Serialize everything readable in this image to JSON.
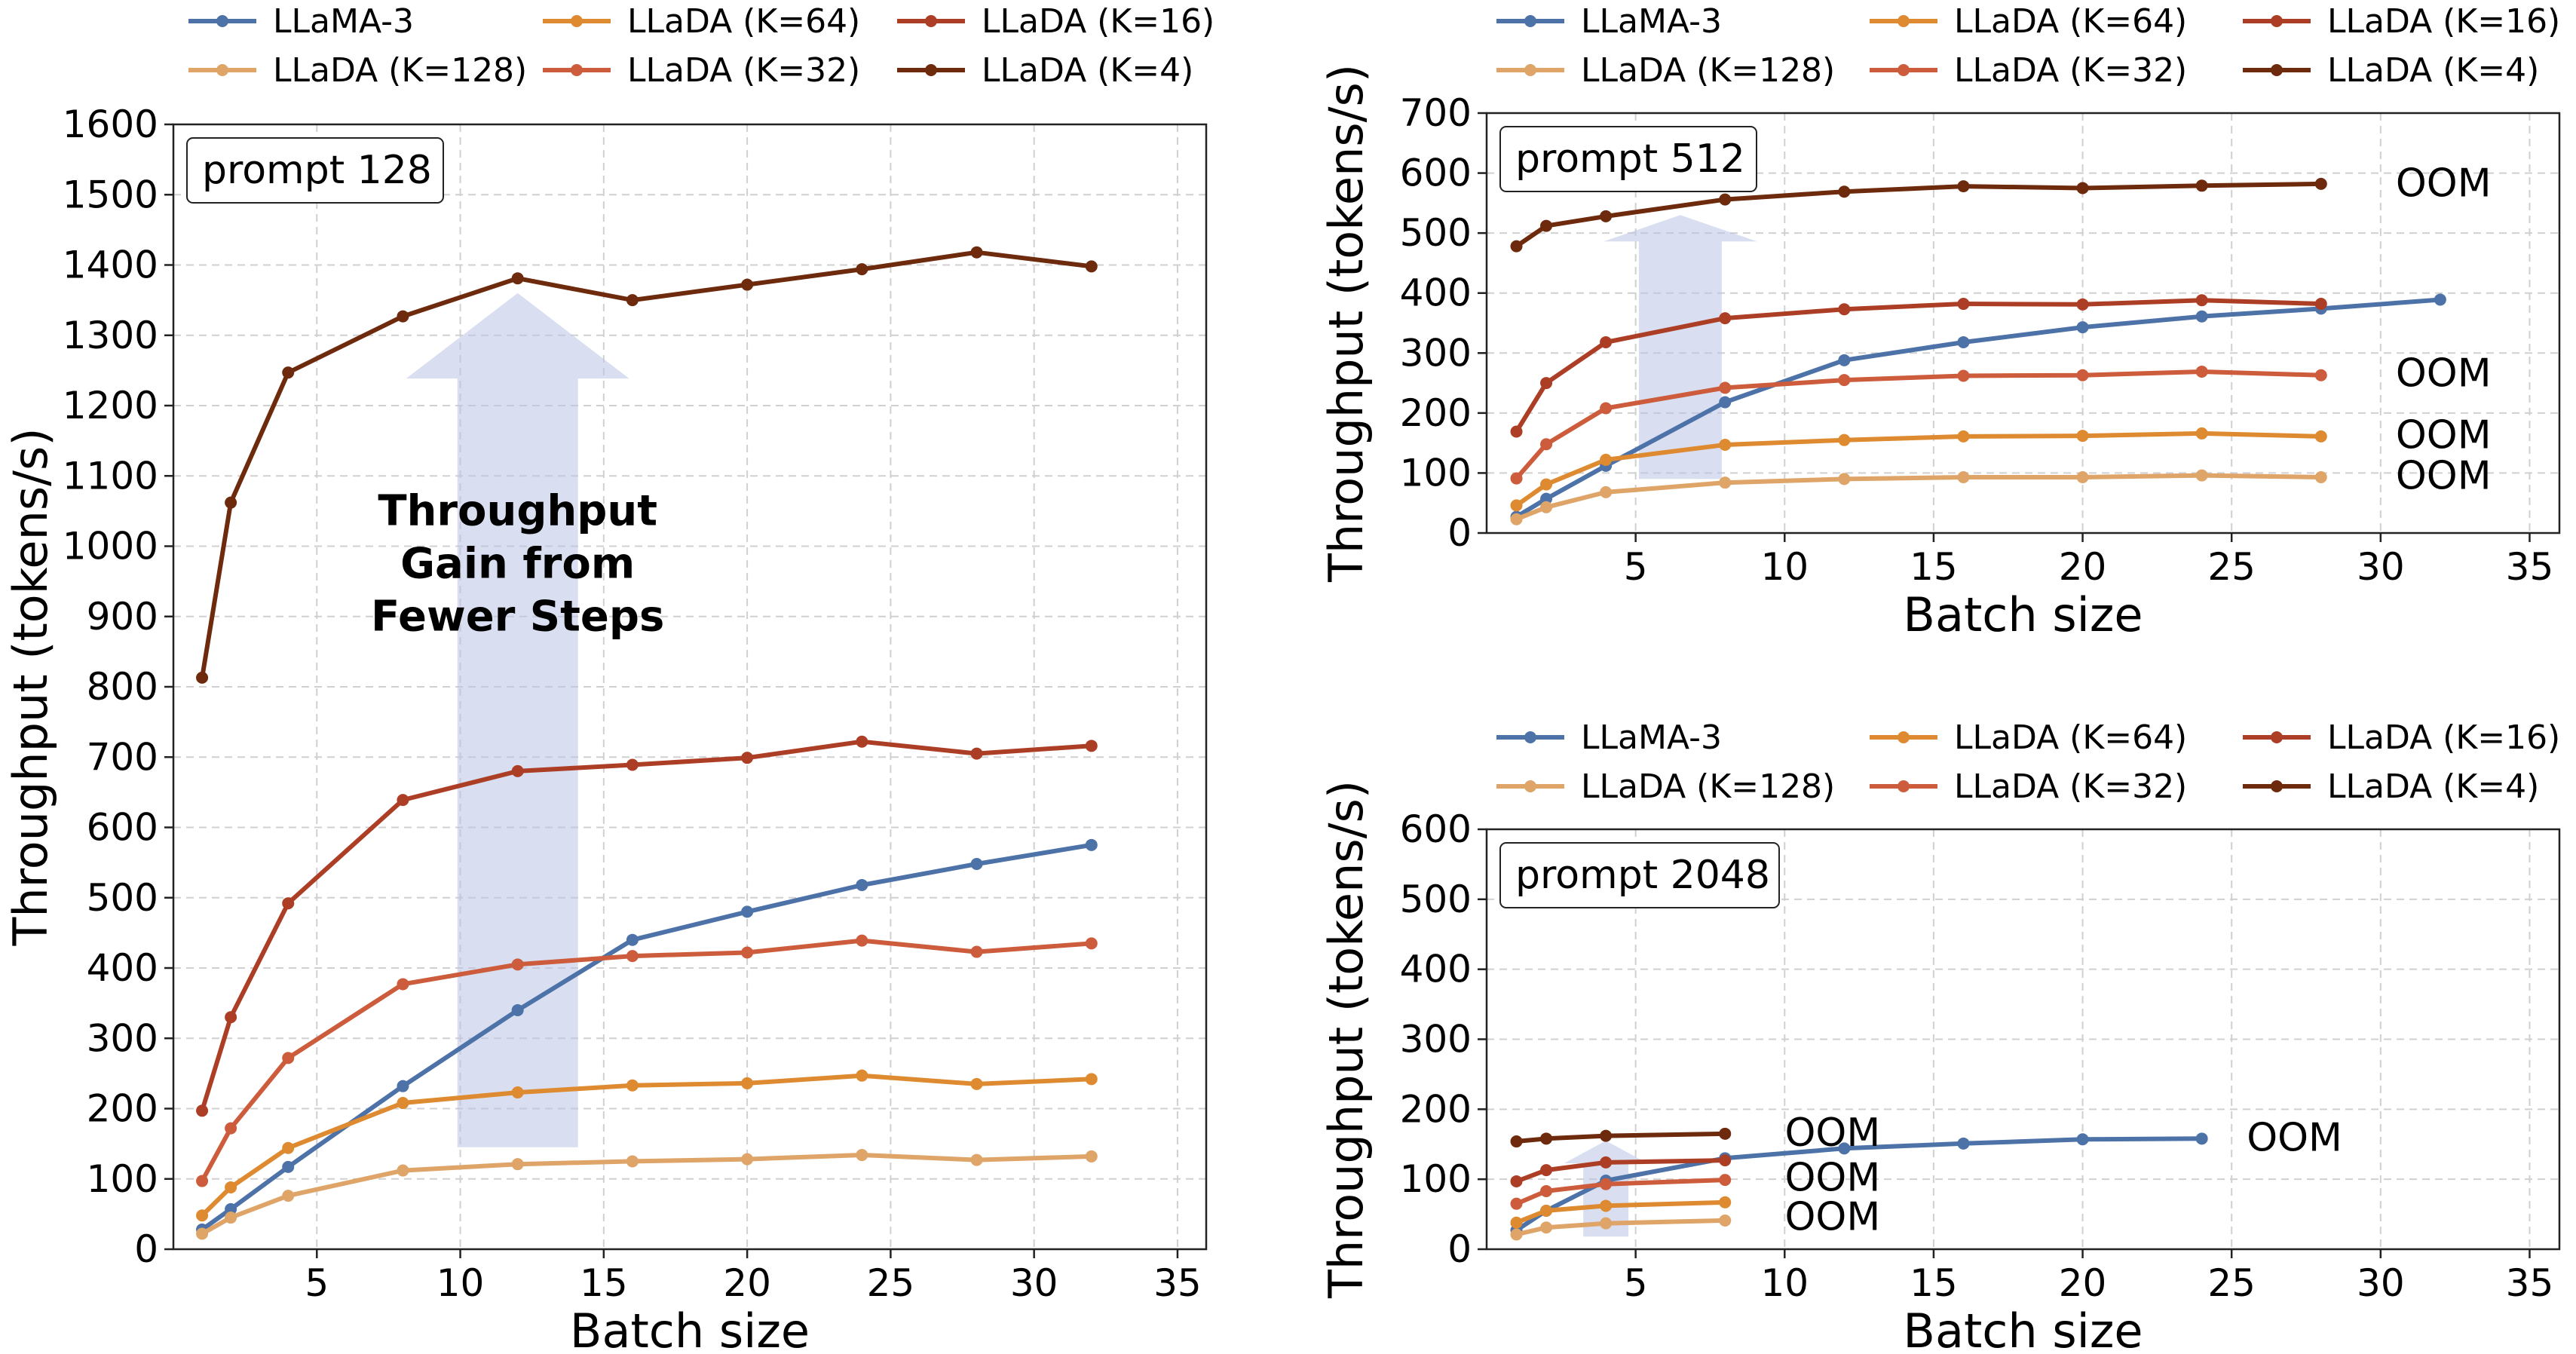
{
  "chart_data": [
    {
      "type": "line",
      "id": "prompt-128",
      "title": "",
      "prompt_label": "prompt 128",
      "xlabel": "Batch size",
      "ylabel": "Throughput (tokens/s)",
      "xlim": [
        0,
        36
      ],
      "ylim": [
        0,
        1600
      ],
      "xticks": [
        5,
        10,
        15,
        20,
        25,
        30,
        35
      ],
      "yticks": [
        0,
        100,
        200,
        300,
        400,
        500,
        600,
        700,
        800,
        900,
        1000,
        1100,
        1200,
        1300,
        1400,
        1500,
        1600
      ],
      "grid": true,
      "legend_position": "above-top",
      "legend_columns": [
        [
          "LLaMA-3",
          "LLaDA (K=128)"
        ],
        [
          "LLaDA (K=64)",
          "LLaDA (K=32)"
        ],
        [
          "LLaDA (K=16)",
          "LLaDA (K=4)"
        ]
      ],
      "annotation": {
        "text_lines": [
          "Throughput",
          "Gain from",
          "Fewer Steps"
        ],
        "arrow_from": [
          12,
          145
        ],
        "arrow_to": [
          12,
          1360
        ]
      },
      "series": [
        {
          "name": "LLaMA-3",
          "color": "#4c72a8",
          "x": [
            1,
            2,
            4,
            8,
            12,
            16,
            20,
            24,
            28,
            32
          ],
          "values": [
            28,
            57,
            117,
            232,
            340,
            440,
            480,
            518,
            548,
            575
          ]
        },
        {
          "name": "LLaDA (K=128)",
          "color": "#dea468",
          "x": [
            1,
            2,
            4,
            8,
            12,
            16,
            20,
            24,
            28,
            32
          ],
          "values": [
            22,
            45,
            76,
            112,
            121,
            125,
            128,
            134,
            127,
            132
          ]
        },
        {
          "name": "LLaDA (K=64)",
          "color": "#dd8a30",
          "x": [
            1,
            2,
            4,
            8,
            12,
            16,
            20,
            24,
            28,
            32
          ],
          "values": [
            48,
            88,
            144,
            208,
            223,
            233,
            236,
            247,
            235,
            242
          ]
        },
        {
          "name": "LLaDA (K=32)",
          "color": "#cc5c3c",
          "x": [
            1,
            2,
            4,
            8,
            12,
            16,
            20,
            24,
            28,
            32
          ],
          "values": [
            97,
            172,
            272,
            377,
            405,
            417,
            422,
            439,
            423,
            435
          ]
        },
        {
          "name": "LLaDA (K=16)",
          "color": "#ad3e26",
          "x": [
            1,
            2,
            4,
            8,
            12,
            16,
            20,
            24,
            28,
            32
          ],
          "values": [
            197,
            330,
            492,
            639,
            680,
            689,
            699,
            722,
            705,
            716
          ]
        },
        {
          "name": "LLaDA (K=4)",
          "color": "#6e2a0c",
          "x": [
            1,
            2,
            4,
            8,
            12,
            16,
            20,
            24,
            28,
            32
          ],
          "values": [
            813,
            1062,
            1247,
            1327,
            1381,
            1350,
            1372,
            1394,
            1418,
            1398
          ]
        }
      ],
      "oom_labels": []
    },
    {
      "type": "line",
      "id": "prompt-512",
      "title": "",
      "prompt_label": "prompt 512",
      "xlabel": "Batch size",
      "ylabel": "Throughput (tokens/s)",
      "xlim": [
        0,
        36
      ],
      "ylim": [
        0,
        700
      ],
      "xticks": [
        5,
        10,
        15,
        20,
        25,
        30,
        35
      ],
      "yticks": [
        0,
        100,
        200,
        300,
        400,
        500,
        600,
        700
      ],
      "grid": true,
      "legend_position": "above-top",
      "legend_columns": [
        [
          "LLaMA-3",
          "LLaDA (K=128)"
        ],
        [
          "LLaDA (K=64)",
          "LLaDA (K=32)"
        ],
        [
          "LLaDA (K=16)",
          "LLaDA (K=4)"
        ]
      ],
      "annotation": {
        "arrow_from": [
          6.5,
          90
        ],
        "arrow_to": [
          6.5,
          530
        ]
      },
      "series": [
        {
          "name": "LLaMA-3",
          "color": "#4c72a8",
          "x": [
            1,
            2,
            4,
            8,
            12,
            16,
            20,
            24,
            28,
            32
          ],
          "values": [
            27,
            57,
            112,
            218,
            288,
            318,
            343,
            361,
            374,
            389
          ]
        },
        {
          "name": "LLaDA (K=128)",
          "color": "#dea468",
          "x": [
            1,
            2,
            4,
            8,
            12,
            16,
            20,
            24,
            28
          ],
          "values": [
            23,
            43,
            68,
            84,
            90,
            93,
            93,
            96,
            93
          ]
        },
        {
          "name": "LLaDA (K=64)",
          "color": "#dd8a30",
          "x": [
            1,
            2,
            4,
            8,
            12,
            16,
            20,
            24,
            28
          ],
          "values": [
            46,
            81,
            122,
            147,
            155,
            161,
            162,
            166,
            161
          ]
        },
        {
          "name": "LLaDA (K=32)",
          "color": "#cc5c3c",
          "x": [
            1,
            2,
            4,
            8,
            12,
            16,
            20,
            24,
            28
          ],
          "values": [
            91,
            148,
            208,
            242,
            255,
            262,
            263,
            269,
            263
          ]
        },
        {
          "name": "LLaDA (K=16)",
          "color": "#ad3e26",
          "x": [
            1,
            2,
            4,
            8,
            12,
            16,
            20,
            24,
            28
          ],
          "values": [
            169,
            250,
            318,
            358,
            373,
            382,
            381,
            388,
            382
          ]
        },
        {
          "name": "LLaDA (K=4)",
          "color": "#6e2a0c",
          "x": [
            1,
            2,
            4,
            8,
            12,
            16,
            20,
            24,
            28
          ],
          "values": [
            478,
            512,
            528,
            556,
            569,
            578,
            575,
            579,
            582
          ]
        }
      ],
      "oom_labels": [
        {
          "text": "OOM",
          "x": 30,
          "y": 584
        },
        {
          "text": "OOM",
          "x": 30,
          "y": 267
        },
        {
          "text": "OOM",
          "x": 30,
          "y": 164
        },
        {
          "text": "OOM",
          "x": 30,
          "y": 96
        }
      ]
    },
    {
      "type": "line",
      "id": "prompt-2048",
      "title": "",
      "prompt_label": "prompt 2048",
      "xlabel": "Batch size",
      "ylabel": "Throughput (tokens/s)",
      "xlim": [
        0,
        36
      ],
      "ylim": [
        0,
        600
      ],
      "xticks": [
        5,
        10,
        15,
        20,
        25,
        30,
        35
      ],
      "yticks": [
        0,
        100,
        200,
        300,
        400,
        500,
        600
      ],
      "grid": true,
      "legend_position": "above-top",
      "legend_columns": [
        [
          "LLaMA-3",
          "LLaDA (K=128)"
        ],
        [
          "LLaDA (K=64)",
          "LLaDA (K=32)"
        ],
        [
          "LLaDA (K=16)",
          "LLaDA (K=4)"
        ]
      ],
      "annotation": {
        "arrow_from": [
          4,
          18
        ],
        "arrow_to": [
          4,
          155
        ]
      },
      "series": [
        {
          "name": "LLaMA-3",
          "color": "#4c72a8",
          "x": [
            1,
            2,
            4,
            8,
            12,
            16,
            20,
            24
          ],
          "values": [
            27,
            55,
            98,
            130,
            144,
            151,
            157,
            158
          ]
        },
        {
          "name": "LLaDA (K=128)",
          "color": "#dea468",
          "x": [
            1,
            2,
            4,
            8
          ],
          "values": [
            21,
            31,
            37,
            41
          ]
        },
        {
          "name": "LLaDA (K=64)",
          "color": "#dd8a30",
          "x": [
            1,
            2,
            4,
            8
          ],
          "values": [
            38,
            55,
            62,
            67
          ]
        },
        {
          "name": "LLaDA (K=32)",
          "color": "#cc5c3c",
          "x": [
            1,
            2,
            4,
            8
          ],
          "values": [
            65,
            83,
            93,
            99
          ]
        },
        {
          "name": "LLaDA (K=16)",
          "color": "#ad3e26",
          "x": [
            1,
            2,
            4,
            8
          ],
          "values": [
            97,
            113,
            124,
            127
          ]
        },
        {
          "name": "LLaDA (K=4)",
          "color": "#6e2a0c",
          "x": [
            1,
            2,
            4,
            8
          ],
          "values": [
            154,
            158,
            162,
            165
          ]
        }
      ],
      "oom_labels": [
        {
          "text": "OOM",
          "x": 25,
          "y": 160
        },
        {
          "text": "OOM",
          "x": 9.5,
          "y": 167
        },
        {
          "text": "OOM",
          "x": 9.5,
          "y": 103
        },
        {
          "text": "OOM",
          "x": 9.5,
          "y": 47
        }
      ]
    }
  ]
}
